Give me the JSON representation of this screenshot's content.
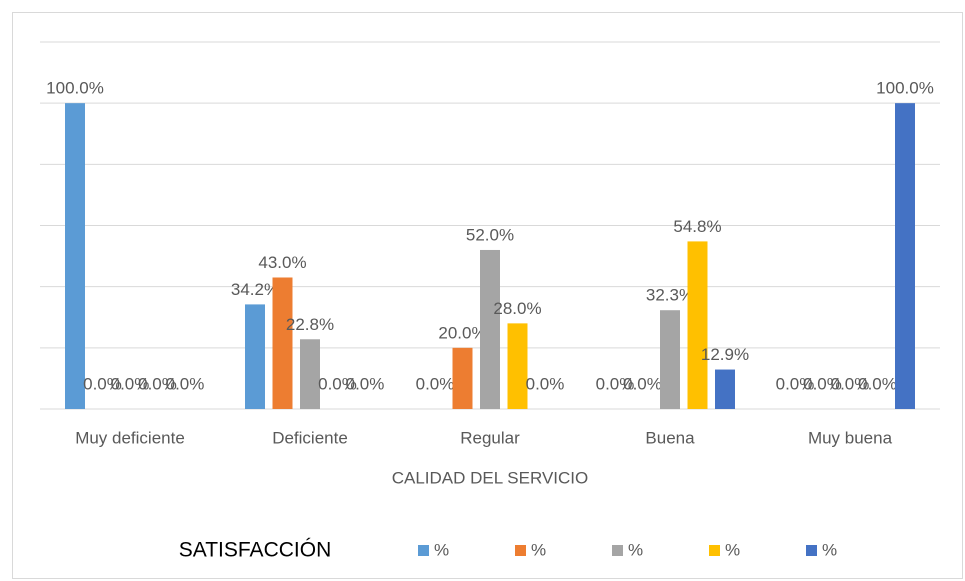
{
  "chart_data": {
    "type": "bar",
    "x_label": "CALIDAD DEL SERVICIO",
    "legend_title": "SATISFACCIÓN",
    "categories": [
      "Muy deficiente",
      "Deficiente",
      "Regular",
      "Buena",
      "Muy buena"
    ],
    "series": [
      {
        "name": "%",
        "color": "#5b9bd5",
        "values": [
          100.0,
          34.2,
          0.0,
          0.0,
          0.0
        ],
        "value_labels": [
          "100.0%",
          "34.2%",
          "0.0%",
          "0.0%",
          "0.0%"
        ]
      },
      {
        "name": "%",
        "color": "#ed7d31",
        "values": [
          0.0,
          43.0,
          20.0,
          0.0,
          0.0
        ],
        "value_labels": [
          "0.0%",
          "43.0%",
          "20.0%",
          "0.0%",
          "0.0%"
        ]
      },
      {
        "name": "%",
        "color": "#a5a5a5",
        "values": [
          0.0,
          22.8,
          52.0,
          32.3,
          0.0
        ],
        "value_labels": [
          "0.0%",
          "22.8%",
          "52.0%",
          "32.3%",
          "0.0%"
        ]
      },
      {
        "name": "%",
        "color": "#ffc000",
        "values": [
          0.0,
          0.0,
          28.0,
          54.8,
          0.0
        ],
        "value_labels": [
          "0.0%",
          "0.0%",
          "28.0%",
          "54.8%",
          "0.0%"
        ]
      },
      {
        "name": "%",
        "color": "#4472c4",
        "values": [
          0.0,
          0.0,
          0.0,
          12.9,
          100.0
        ],
        "value_labels": [
          "0.0%",
          "0.0%",
          "0.0%",
          "12.9%",
          "100.0%"
        ]
      }
    ],
    "ylim": [
      0,
      120
    ],
    "yticks": [
      0,
      20,
      40,
      60,
      80,
      100,
      120
    ],
    "grid": true,
    "legend": "bottom"
  }
}
